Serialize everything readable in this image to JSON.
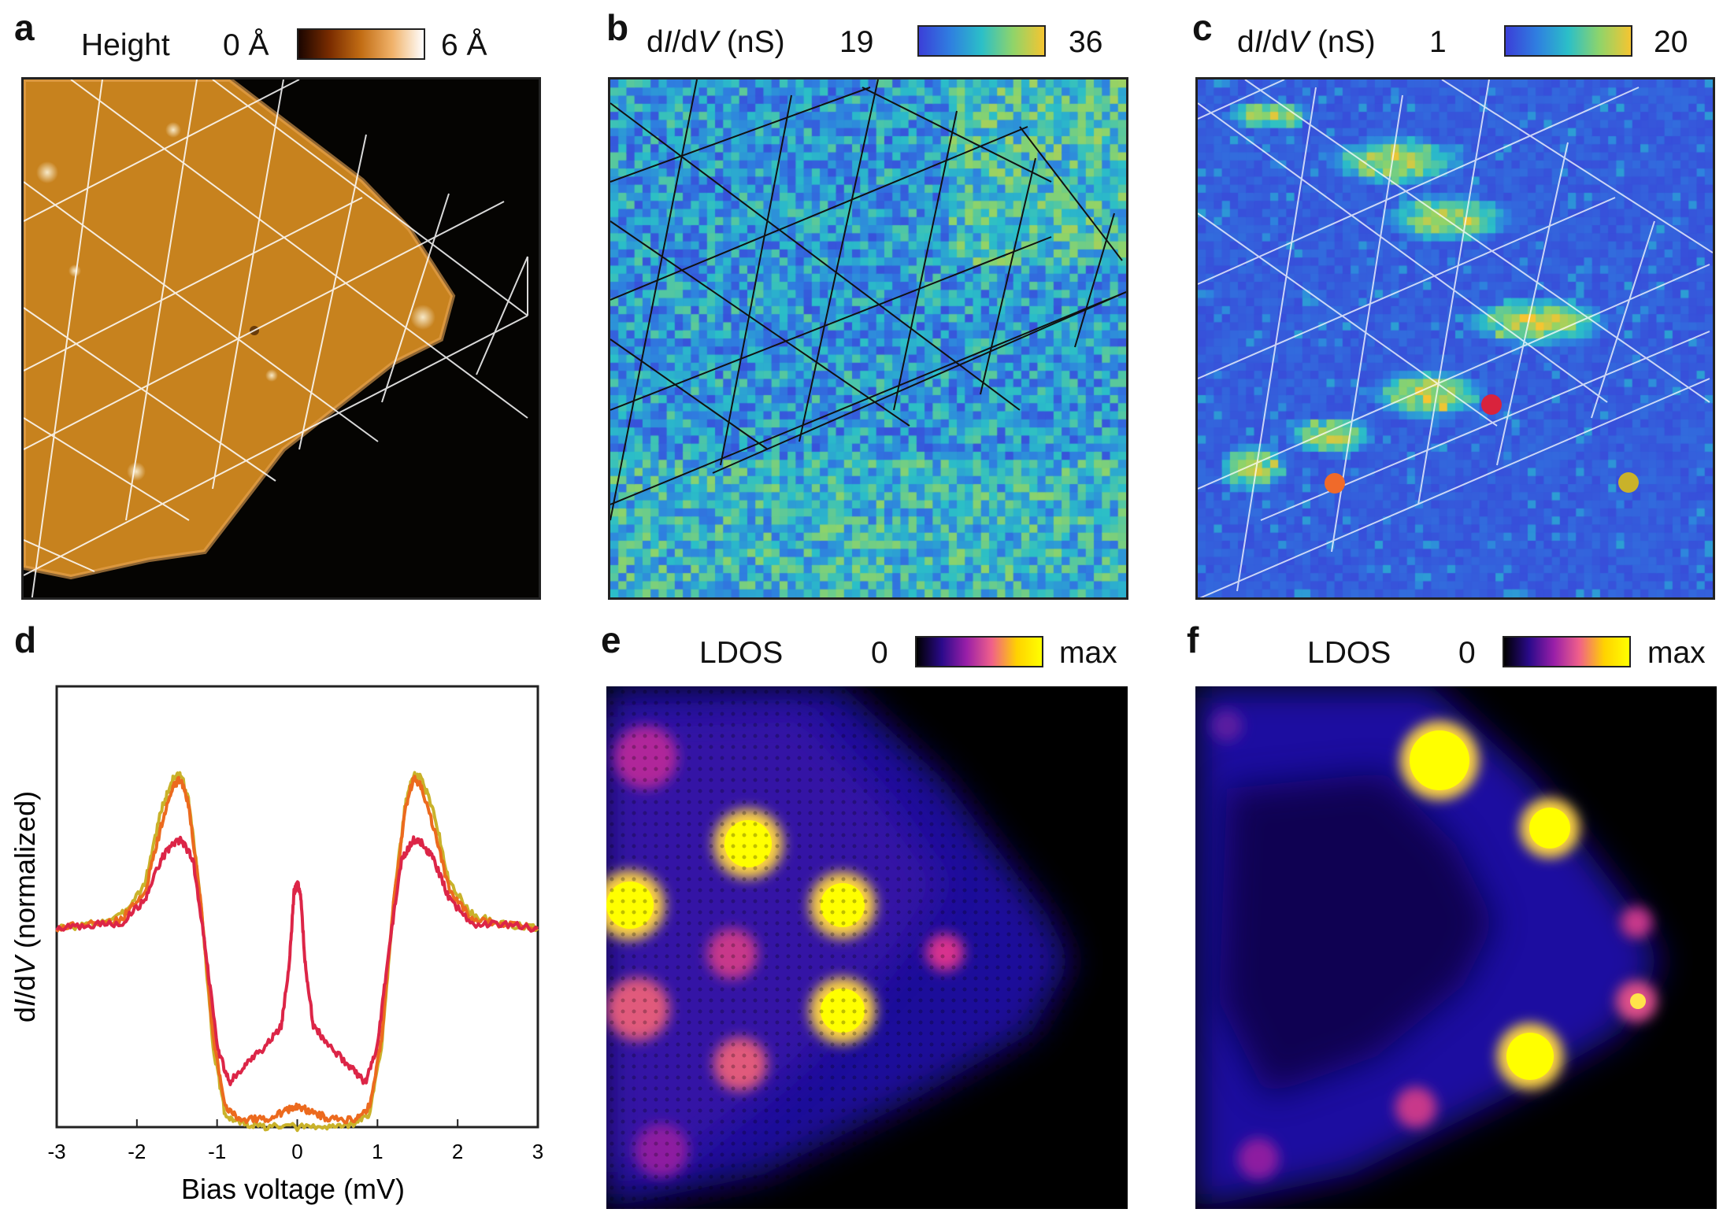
{
  "figure": {
    "panels": {
      "a": {
        "label": "a",
        "colorbar": {
          "title": "Height",
          "min_label": "0 Å",
          "max_label": "6 Å",
          "colors": [
            "#1a0500",
            "#7a2c00",
            "#c26d14",
            "#f0b26a",
            "#ffffff"
          ]
        }
      },
      "b": {
        "label": "b",
        "colorbar": {
          "title_prefix": "d",
          "title_i": "I",
          "title_mid": "/d",
          "title_v": "V",
          "title_suffix": " (nS)",
          "min_label": "19",
          "max_label": "36",
          "colors": [
            "#3b3fd8",
            "#2f7fe0",
            "#2bbfc8",
            "#8fd46a",
            "#f5c531"
          ]
        }
      },
      "c": {
        "label": "c",
        "colorbar": {
          "title_prefix": "d",
          "title_i": "I",
          "title_mid": "/d",
          "title_v": "V",
          "title_suffix": " (nS)",
          "min_label": "1",
          "max_label": "20",
          "colors": [
            "#3b3fd8",
            "#2f7fe0",
            "#2bbfc8",
            "#8fd46a",
            "#f5c531"
          ]
        },
        "markers": [
          {
            "name": "red-marker",
            "color": "#d9233c"
          },
          {
            "name": "orange-marker",
            "color": "#f06a2a"
          },
          {
            "name": "olive-marker",
            "color": "#c9b22a"
          }
        ]
      },
      "d": {
        "label": "d"
      },
      "e": {
        "label": "e",
        "colorbar": {
          "title": "LDOS",
          "min_label": "0",
          "max_label": "max",
          "colors": [
            "#000000",
            "#2a0a8a",
            "#9a1fa8",
            "#f0608a",
            "#ffd200",
            "#ffff00"
          ]
        }
      },
      "f": {
        "label": "f",
        "colorbar": {
          "title": "LDOS",
          "min_label": "0",
          "max_label": "max",
          "colors": [
            "#000000",
            "#2a0a8a",
            "#9a1fa8",
            "#f0608a",
            "#ffd200",
            "#ffff00"
          ]
        }
      }
    }
  },
  "chart_data": {
    "type": "line",
    "xlabel": "Bias voltage (mV)",
    "ylabel_prefix": "d",
    "ylabel_i": "I",
    "ylabel_mid": "/d",
    "ylabel_v": "V",
    "ylabel_suffix": " (normalized)",
    "xlim": [
      -3,
      3
    ],
    "ylim": [
      0,
      1.0
    ],
    "xticks": [
      "-3",
      "-2",
      "-1",
      "0",
      "1",
      "2",
      "3"
    ],
    "grid": false,
    "series": [
      {
        "color": "#c9b22a",
        "x": [
          -3,
          -2.6,
          -2.2,
          -1.9,
          -1.7,
          -1.55,
          -1.45,
          -1.35,
          -1.2,
          -1.05,
          -0.9,
          -0.7,
          -0.4,
          0,
          0.4,
          0.7,
          0.9,
          1.05,
          1.2,
          1.35,
          1.45,
          1.55,
          1.7,
          1.9,
          2.2,
          2.6,
          3
        ],
        "y": [
          0.49,
          0.5,
          0.52,
          0.6,
          0.78,
          0.86,
          0.87,
          0.8,
          0.55,
          0.2,
          0.03,
          0.01,
          0.0,
          0.0,
          0.0,
          0.01,
          0.03,
          0.2,
          0.55,
          0.8,
          0.87,
          0.86,
          0.78,
          0.6,
          0.52,
          0.5,
          0.49
        ]
      },
      {
        "color": "#ec6a1e",
        "x": [
          -3,
          -2.6,
          -2.2,
          -1.9,
          -1.7,
          -1.55,
          -1.45,
          -1.35,
          -1.2,
          -1.05,
          -0.9,
          -0.7,
          -0.4,
          -0.15,
          0,
          0.15,
          0.4,
          0.7,
          0.9,
          1.05,
          1.2,
          1.35,
          1.45,
          1.55,
          1.7,
          1.9,
          2.2,
          2.6,
          3
        ],
        "y": [
          0.49,
          0.5,
          0.51,
          0.58,
          0.74,
          0.84,
          0.86,
          0.79,
          0.55,
          0.22,
          0.05,
          0.02,
          0.02,
          0.04,
          0.05,
          0.04,
          0.02,
          0.02,
          0.05,
          0.22,
          0.55,
          0.79,
          0.86,
          0.84,
          0.74,
          0.58,
          0.51,
          0.5,
          0.49
        ]
      },
      {
        "color": "#dc2547",
        "x": [
          -3,
          -2.6,
          -2.2,
          -1.9,
          -1.7,
          -1.55,
          -1.45,
          -1.3,
          -1.15,
          -1.0,
          -0.85,
          -0.65,
          -0.4,
          -0.2,
          -0.1,
          -0.04,
          0,
          0.04,
          0.1,
          0.2,
          0.4,
          0.65,
          0.85,
          1.0,
          1.15,
          1.3,
          1.45,
          1.55,
          1.7,
          1.9,
          2.2,
          2.6,
          3
        ],
        "y": [
          0.49,
          0.5,
          0.5,
          0.56,
          0.66,
          0.7,
          0.71,
          0.66,
          0.45,
          0.2,
          0.11,
          0.15,
          0.2,
          0.25,
          0.4,
          0.58,
          0.6,
          0.58,
          0.4,
          0.25,
          0.2,
          0.15,
          0.11,
          0.2,
          0.45,
          0.66,
          0.71,
          0.7,
          0.66,
          0.56,
          0.5,
          0.5,
          0.49
        ]
      }
    ]
  }
}
